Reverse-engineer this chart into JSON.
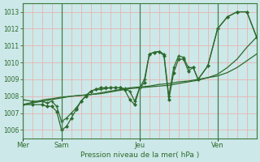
{
  "background_color": "#cce8e8",
  "grid_color_h": "#e8b4b4",
  "grid_color_v": "#e8b4b4",
  "line_color": "#2d6a2d",
  "xlabel": "Pression niveau de la mer( hPa )",
  "ylim": [
    1005.5,
    1013.5
  ],
  "yticks": [
    1006,
    1007,
    1008,
    1009,
    1010,
    1011,
    1012,
    1013
  ],
  "xlim": [
    0,
    96
  ],
  "day_positions": [
    0,
    16,
    48,
    80
  ],
  "day_labels": [
    "Mer",
    "Sam",
    "Jeu",
    "Ven"
  ],
  "series1_x": [
    0,
    3,
    6,
    9,
    12,
    16,
    20,
    24,
    28,
    32,
    36,
    40,
    44,
    48,
    52,
    56,
    60,
    64,
    68,
    72,
    76,
    80,
    84,
    88,
    92,
    96
  ],
  "series1_y": [
    1007.5,
    1007.6,
    1007.7,
    1007.8,
    1007.85,
    1007.95,
    1008.0,
    1008.05,
    1008.1,
    1008.2,
    1008.3,
    1008.4,
    1008.5,
    1008.55,
    1008.6,
    1008.7,
    1008.75,
    1008.85,
    1008.9,
    1009.0,
    1009.1,
    1009.2,
    1009.4,
    1009.7,
    1010.1,
    1010.5
  ],
  "series2_x": [
    0,
    4,
    8,
    12,
    16,
    20,
    24,
    28,
    32,
    36,
    40,
    44,
    48,
    52,
    56,
    60,
    64,
    68,
    72,
    76,
    80,
    84,
    88,
    92,
    96
  ],
  "series2_y": [
    1007.5,
    1007.6,
    1007.7,
    1007.8,
    1007.9,
    1008.0,
    1008.05,
    1008.1,
    1008.15,
    1008.25,
    1008.35,
    1008.45,
    1008.5,
    1008.55,
    1008.6,
    1008.65,
    1008.75,
    1008.85,
    1008.95,
    1009.1,
    1009.3,
    1009.7,
    1010.2,
    1010.9,
    1011.5
  ],
  "series3_x": [
    0,
    4,
    8,
    10,
    12,
    14,
    16,
    18,
    20,
    22,
    24,
    26,
    28,
    30,
    32,
    34,
    36,
    38,
    40,
    42,
    44,
    46,
    48,
    50,
    52,
    54,
    56,
    58,
    60,
    62,
    64,
    66,
    68,
    70,
    72,
    76,
    80,
    84,
    88,
    92,
    96
  ],
  "series3_y": [
    1007.8,
    1007.7,
    1007.7,
    1007.6,
    1007.7,
    1007.4,
    1006.5,
    1006.7,
    1007.0,
    1007.3,
    1007.7,
    1008.05,
    1008.3,
    1008.4,
    1008.4,
    1008.45,
    1008.5,
    1008.5,
    1008.5,
    1008.45,
    1008.3,
    1007.7,
    1008.5,
    1009.0,
    1010.5,
    1010.6,
    1010.65,
    1010.5,
    1008.0,
    1009.7,
    1010.4,
    1010.3,
    1009.7,
    1009.7,
    1009.0,
    1009.8,
    1012.0,
    1012.7,
    1013.0,
    1013.0,
    1011.5
  ],
  "series4_x": [
    0,
    4,
    8,
    10,
    12,
    14,
    16,
    18,
    20,
    22,
    24,
    26,
    28,
    30,
    32,
    34,
    36,
    38,
    40,
    42,
    44,
    46,
    48,
    50,
    52,
    54,
    56,
    58,
    60,
    62,
    64,
    66,
    68,
    70,
    72,
    76,
    80,
    84,
    88,
    92,
    96
  ],
  "series4_y": [
    1007.5,
    1007.5,
    1007.5,
    1007.4,
    1007.4,
    1007.1,
    1006.0,
    1006.2,
    1006.7,
    1007.2,
    1007.7,
    1008.0,
    1008.3,
    1008.4,
    1008.5,
    1008.5,
    1008.5,
    1008.5,
    1008.5,
    1008.35,
    1007.8,
    1007.5,
    1008.5,
    1008.8,
    1010.5,
    1010.6,
    1010.65,
    1010.4,
    1007.8,
    1009.4,
    1010.2,
    1010.2,
    1009.5,
    1009.7,
    1009.0,
    1009.8,
    1012.0,
    1012.7,
    1013.0,
    1013.0,
    1011.5
  ]
}
